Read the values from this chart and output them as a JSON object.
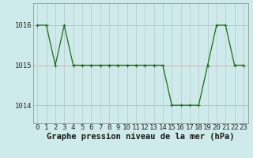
{
  "hours": [
    0,
    1,
    2,
    3,
    4,
    5,
    6,
    7,
    8,
    9,
    10,
    11,
    12,
    13,
    14,
    15,
    16,
    17,
    18,
    19,
    20,
    21,
    22,
    23
  ],
  "pressure": [
    1016,
    1016,
    1015,
    1016,
    1015,
    1015,
    1015,
    1015,
    1015,
    1015,
    1015,
    1015,
    1015,
    1015,
    1015,
    1014,
    1014,
    1014,
    1014,
    1015,
    1016,
    1016,
    1015,
    1015
  ],
  "line_color": "#1a6e1a",
  "marker": "+",
  "marker_size": 3,
  "marker_linewidth": 0.8,
  "background_color": "#ceeaea",
  "hgrid_color": "#e8b0b0",
  "vgrid_color": "#b8c8c8",
  "yticks": [
    1014,
    1015,
    1016
  ],
  "ylim": [
    1013.55,
    1016.55
  ],
  "xlim": [
    -0.5,
    23.5
  ],
  "xlabel": "Graphe pression niveau de la mer (hPa)",
  "xlabel_fontsize": 7.5,
  "tick_fontsize": 6.5,
  "line_width": 0.9
}
